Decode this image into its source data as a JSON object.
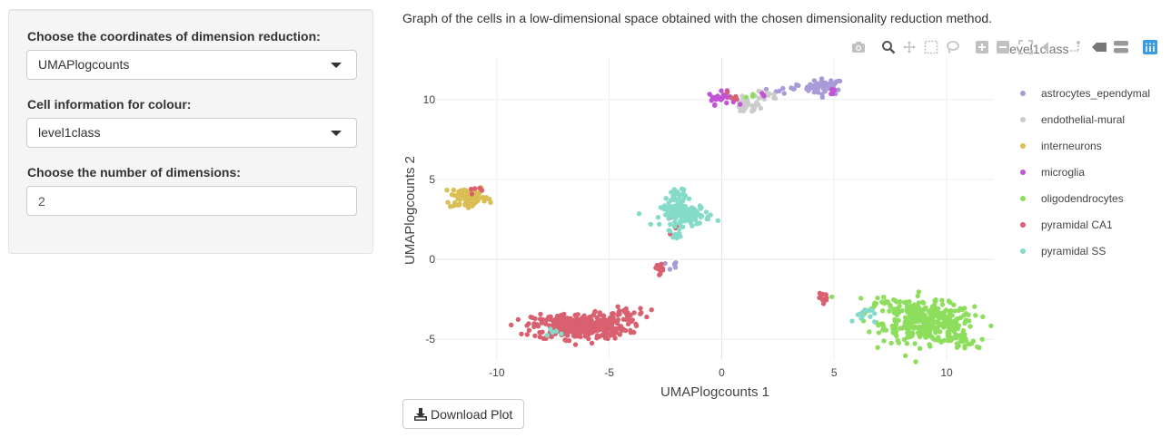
{
  "sidebar": {
    "coords_label": "Choose the coordinates of dimension reduction:",
    "coords_value": "UMAPlogcounts",
    "colour_label": "Cell information for colour:",
    "colour_value": "level1class",
    "dims_label": "Choose the number of dimensions:",
    "dims_value": "2"
  },
  "main": {
    "caption": "Graph of the cells in a low-dimensional space obtained with the chosen dimensionality reduction method.",
    "download_label": "Download Plot"
  },
  "modebar": [
    "camera-icon",
    "zoom-icon",
    "pan-icon",
    "box-select-icon",
    "lasso-select-icon",
    "zoom-in-icon",
    "zoom-out-icon",
    "autoscale-icon",
    "reset-axes-icon",
    "spike-lines-icon",
    "hover-closest-icon",
    "hover-compare-icon",
    "plotly-logo-icon"
  ],
  "chart_data": {
    "type": "scatter",
    "xlabel": "UMAPlogcounts 1",
    "ylabel": "UMAPlogcounts 2",
    "legend_title": "level1class",
    "legend_position": "right",
    "xlim": [
      -12.7,
      12.1
    ],
    "ylim": [
      -6.3,
      12.6
    ],
    "xticks": [
      -10,
      -5,
      0,
      5,
      10
    ],
    "yticks": [
      -5,
      0,
      5,
      10
    ],
    "grid": true,
    "series": [
      {
        "name": "astrocytes_ependymal",
        "color": "#a99bd7",
        "clusters": [
          {
            "cx": 4.6,
            "cy": 10.8,
            "sx": 0.4,
            "sy": 0.25,
            "n": 45
          },
          {
            "cx": 3.5,
            "cy": 10.8,
            "sx": 0.5,
            "sy": 0.12,
            "n": 6
          },
          {
            "cx": 2.7,
            "cy": 10.5,
            "sx": 0.35,
            "sy": 0.12,
            "n": 5
          },
          {
            "cx": -2.3,
            "cy": -0.4,
            "sx": 0.3,
            "sy": 0.15,
            "n": 6
          },
          {
            "cx": -1.95,
            "cy": 3.4,
            "sx": 0.06,
            "sy": 0.06,
            "n": 1
          }
        ]
      },
      {
        "name": "endothelial-mural",
        "color": "#cccccc",
        "clusters": [
          {
            "cx": 1.1,
            "cy": 9.6,
            "sx": 0.3,
            "sy": 0.25,
            "n": 30
          },
          {
            "cx": 2.0,
            "cy": 10.2,
            "sx": 0.3,
            "sy": 0.15,
            "n": 12
          }
        ]
      },
      {
        "name": "interneurons",
        "color": "#dabe54",
        "clusters": [
          {
            "cx": -11.3,
            "cy": 3.9,
            "sx": 0.4,
            "sy": 0.4,
            "n": 70
          },
          {
            "cx": -10.5,
            "cy": 3.8,
            "sx": 0.25,
            "sy": 0.12,
            "n": 8
          }
        ]
      },
      {
        "name": "microglia",
        "color": "#c054d4",
        "clusters": [
          {
            "cx": -0.0,
            "cy": 10.1,
            "sx": 0.3,
            "sy": 0.2,
            "n": 28
          },
          {
            "cx": 4.9,
            "cy": 10.5,
            "sx": 0.1,
            "sy": 0.15,
            "n": 4
          },
          {
            "cx": 1.8,
            "cy": 10.3,
            "sx": 0.1,
            "sy": 0.1,
            "n": 3
          }
        ]
      },
      {
        "name": "oligodendrocytes",
        "color": "#8ede5e",
        "clusters": [
          {
            "cx": 9.2,
            "cy": -4.0,
            "sx": 1.0,
            "sy": 0.6,
            "n": 320
          },
          {
            "cx": 7.3,
            "cy": -2.8,
            "sx": 0.7,
            "sy": 0.25,
            "n": 35
          },
          {
            "cx": 10.6,
            "cy": -5.2,
            "sx": 0.4,
            "sy": 0.3,
            "n": 25
          },
          {
            "cx": 1.5,
            "cy": 10.2,
            "sx": 0.2,
            "sy": 0.15,
            "n": 3
          },
          {
            "cx": 4.8,
            "cy": -2.4,
            "sx": 0.06,
            "sy": 0.06,
            "n": 1
          }
        ]
      },
      {
        "name": "pyramidal CA1",
        "color": "#d8606f",
        "clusters": [
          {
            "cx": -6.3,
            "cy": -4.2,
            "sx": 1.05,
            "sy": 0.4,
            "n": 360
          },
          {
            "cx": -4.3,
            "cy": -3.4,
            "sx": 0.45,
            "sy": 0.2,
            "n": 25
          },
          {
            "cx": -2.8,
            "cy": -0.5,
            "sx": 0.2,
            "sy": 0.2,
            "n": 14
          },
          {
            "cx": 4.6,
            "cy": -2.4,
            "sx": 0.15,
            "sy": 0.12,
            "n": 10
          },
          {
            "cx": -10.9,
            "cy": 4.2,
            "sx": 0.3,
            "sy": 0.25,
            "n": 5
          },
          {
            "cx": -2.3,
            "cy": 2.0,
            "sx": 0.2,
            "sy": 0.4,
            "n": 4
          },
          {
            "cx": 0.3,
            "cy": 10.2,
            "sx": 0.2,
            "sy": 0.15,
            "n": 4
          }
        ]
      },
      {
        "name": "pyramidal SS",
        "color": "#84dbc9",
        "clusters": [
          {
            "cx": -1.6,
            "cy": 2.8,
            "sx": 0.55,
            "sy": 0.35,
            "n": 120
          },
          {
            "cx": -2.0,
            "cy": 3.9,
            "sx": 0.2,
            "sy": 0.35,
            "n": 30
          },
          {
            "cx": -2.0,
            "cy": 1.5,
            "sx": 0.15,
            "sy": 0.12,
            "n": 6
          },
          {
            "cx": 6.3,
            "cy": -3.5,
            "sx": 0.25,
            "sy": 0.3,
            "n": 15
          },
          {
            "cx": -7.4,
            "cy": -4.7,
            "sx": 0.2,
            "sy": 0.15,
            "n": 5
          }
        ]
      }
    ]
  }
}
